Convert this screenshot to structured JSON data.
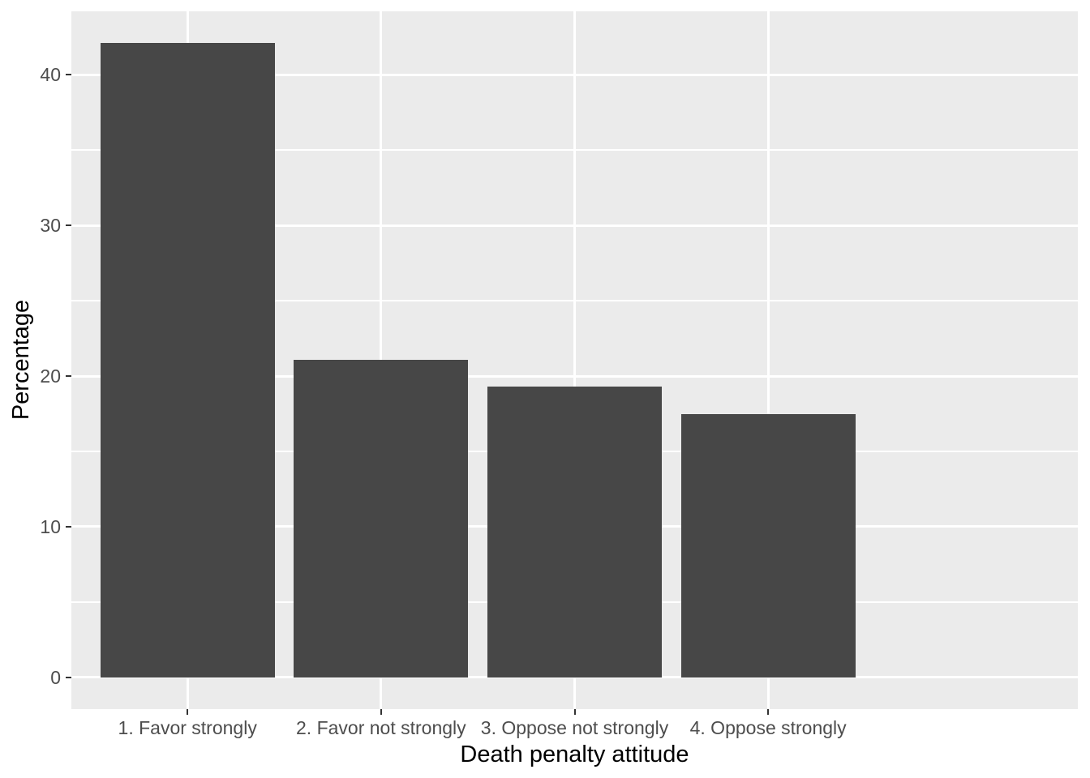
{
  "chart_data": {
    "type": "bar",
    "title": "",
    "xlabel": "Death penalty attitude",
    "ylabel": "Percentage",
    "categories": [
      "1. Favor strongly",
      "2. Favor not strongly",
      "3. Oppose not strongly",
      "4. Oppose strongly"
    ],
    "values": [
      42.1,
      21.1,
      19.3,
      17.5
    ],
    "yticks": [
      0,
      10,
      20,
      30,
      40
    ],
    "yticks_minor": [
      5,
      15,
      25,
      35
    ],
    "ylim": [
      -2.105,
      44.205
    ],
    "grid": "on",
    "legend": "none",
    "bar_width_fraction": 0.9,
    "discrete_x_expansion": 0.6,
    "colors": {
      "bar_fill": "#474747",
      "panel_bg": "#EBEBEB",
      "grid_major": "#FFFFFF",
      "grid_minor": "#FFFFFF",
      "axis_text": "#4D4D4D",
      "axis_title": "#000000",
      "tick_mark": "#333333",
      "figure_bg": "#FFFFFF"
    }
  }
}
